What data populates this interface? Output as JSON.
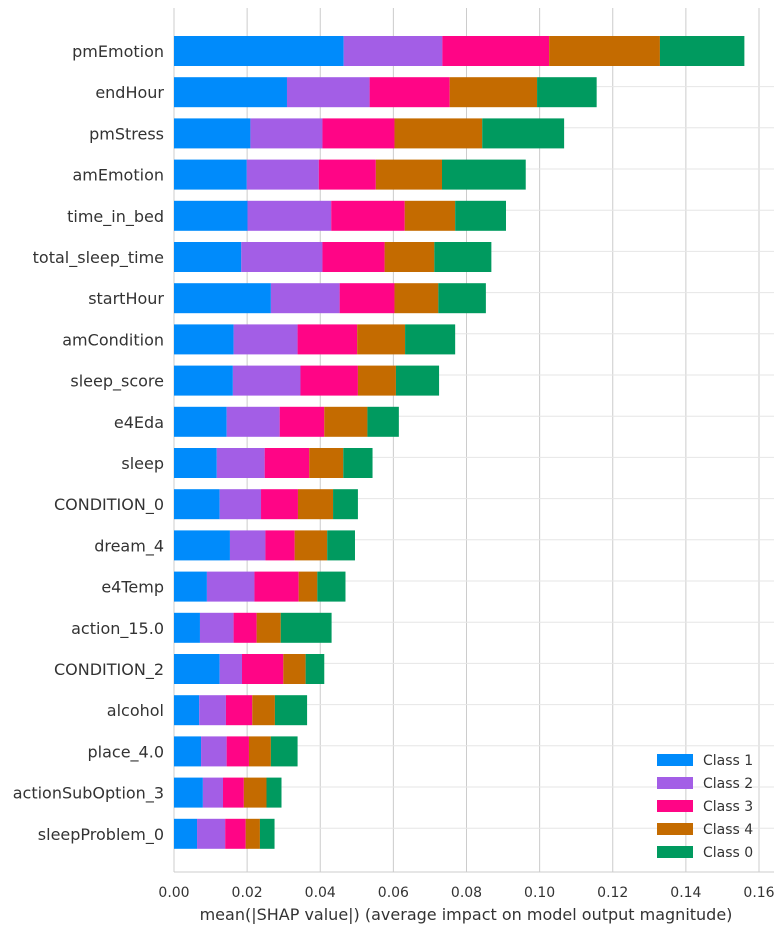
{
  "chart_data": {
    "type": "bar",
    "orientation": "horizontal",
    "stacked": true,
    "title": "",
    "xlabel": "mean(|SHAP value|) (average impact on model output magnitude)",
    "ylabel": "",
    "xlim": [
      0.0,
      0.162
    ],
    "xticks": [
      "0.00",
      "0.02",
      "0.04",
      "0.06",
      "0.08",
      "0.10",
      "0.12",
      "0.14",
      "0.16"
    ],
    "grid": true,
    "legend_position": "bottom-right",
    "categories": [
      "pmEmotion",
      "endHour",
      "pmStress",
      "amEmotion",
      "time_in_bed",
      "total_sleep_time",
      "startHour",
      "amCondition",
      "sleep_score",
      "e4Eda",
      "sleep",
      "CONDITION_0",
      "dream_4",
      "e4Temp",
      "action_15.0",
      "CONDITION_2",
      "alcohol",
      "place_4.0",
      "actionSubOption_3",
      "sleepProblem_0"
    ],
    "series": [
      {
        "name": "Class 1",
        "color": "#008bfb",
        "values": [
          0.0464,
          0.0309,
          0.0209,
          0.0199,
          0.0201,
          0.0184,
          0.0265,
          0.0163,
          0.0161,
          0.0144,
          0.0117,
          0.0125,
          0.0153,
          0.009,
          0.0071,
          0.0125,
          0.0069,
          0.0074,
          0.0079,
          0.0063
        ]
      },
      {
        "name": "Class 2",
        "color": "#a35ee6",
        "values": [
          0.027,
          0.0226,
          0.0197,
          0.0197,
          0.0229,
          0.0222,
          0.0188,
          0.0175,
          0.0185,
          0.0145,
          0.0131,
          0.0113,
          0.0097,
          0.013,
          0.0092,
          0.0061,
          0.0073,
          0.007,
          0.0055,
          0.0077
        ]
      },
      {
        "name": "Class 3",
        "color": "#ff0586",
        "values": [
          0.0292,
          0.0219,
          0.0197,
          0.0156,
          0.0201,
          0.017,
          0.015,
          0.0163,
          0.0157,
          0.0122,
          0.0122,
          0.0101,
          0.008,
          0.0121,
          0.0063,
          0.0113,
          0.0072,
          0.0061,
          0.0057,
          0.0056
        ]
      },
      {
        "name": "Class 4",
        "color": "#c46b00",
        "values": [
          0.0303,
          0.0239,
          0.024,
          0.0181,
          0.0138,
          0.0136,
          0.012,
          0.0131,
          0.0104,
          0.0118,
          0.0093,
          0.0096,
          0.0089,
          0.0051,
          0.0066,
          0.0061,
          0.0062,
          0.006,
          0.0062,
          0.0039
        ]
      },
      {
        "name": "Class 0",
        "color": "#009a5f",
        "values": [
          0.0231,
          0.0163,
          0.0224,
          0.0229,
          0.0139,
          0.0156,
          0.013,
          0.0137,
          0.0118,
          0.0086,
          0.008,
          0.0068,
          0.0076,
          0.0077,
          0.0139,
          0.0051,
          0.0088,
          0.0073,
          0.0041,
          0.004
        ]
      }
    ],
    "legend": {
      "order": [
        "Class 1",
        "Class 2",
        "Class 3",
        "Class 4",
        "Class 0"
      ]
    }
  }
}
